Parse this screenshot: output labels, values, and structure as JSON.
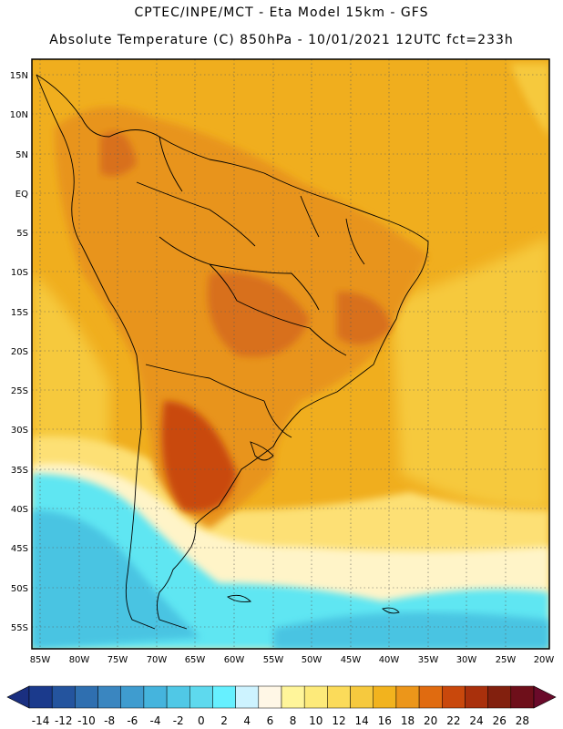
{
  "header": {
    "title_line1": "CPTEC/INPE/MCT -  Eta Model 15km - GFS",
    "title_line2": "Absolute Temperature (C) 850hPa - 10/01/2021 12UTC fct=233h"
  },
  "map": {
    "lat_labels": [
      "15N",
      "10N",
      "5N",
      "EQ",
      "5S",
      "10S",
      "15S",
      "20S",
      "25S",
      "30S",
      "35S",
      "40S",
      "45S",
      "50S",
      "55S"
    ],
    "lon_labels": [
      "85W",
      "80W",
      "75W",
      "70W",
      "65W",
      "60W",
      "55W",
      "50W",
      "45W",
      "40W",
      "35W",
      "30W",
      "25W",
      "20W"
    ]
  },
  "colorbar": {
    "labels": [
      "-14",
      "-12",
      "-10",
      "-8",
      "-6",
      "-4",
      "-2",
      "0",
      "2",
      "4",
      "6",
      "8",
      "10",
      "12",
      "14",
      "16",
      "18",
      "20",
      "22",
      "24",
      "26",
      "28"
    ],
    "colors": [
      "#1b3a8c",
      "#24549e",
      "#2f6fb0",
      "#3a86c0",
      "#3f9ccf",
      "#45b4dd",
      "#50c8e6",
      "#5ed9ee",
      "#66f0ff",
      "#cdf3ff",
      "#fff7e6",
      "#fff59a",
      "#fdea7a",
      "#fbdb5a",
      "#f6c93e",
      "#f2b31e",
      "#ec961a",
      "#e06b10",
      "#c9480c",
      "#a9300c",
      "#82200e",
      "#6e0f1a"
    ],
    "left_arrow_color": "#1a2f80",
    "right_arrow_color": "#6a0a2a"
  },
  "colors": {
    "ocean_warm": "#f0ae1e",
    "ocean_mild": "#f6c93e",
    "land_hot": "#e8941a",
    "land_hotter": "#d8701a",
    "cold_cyan": "#5fe6f2",
    "cold_blue": "#48c4e2"
  }
}
